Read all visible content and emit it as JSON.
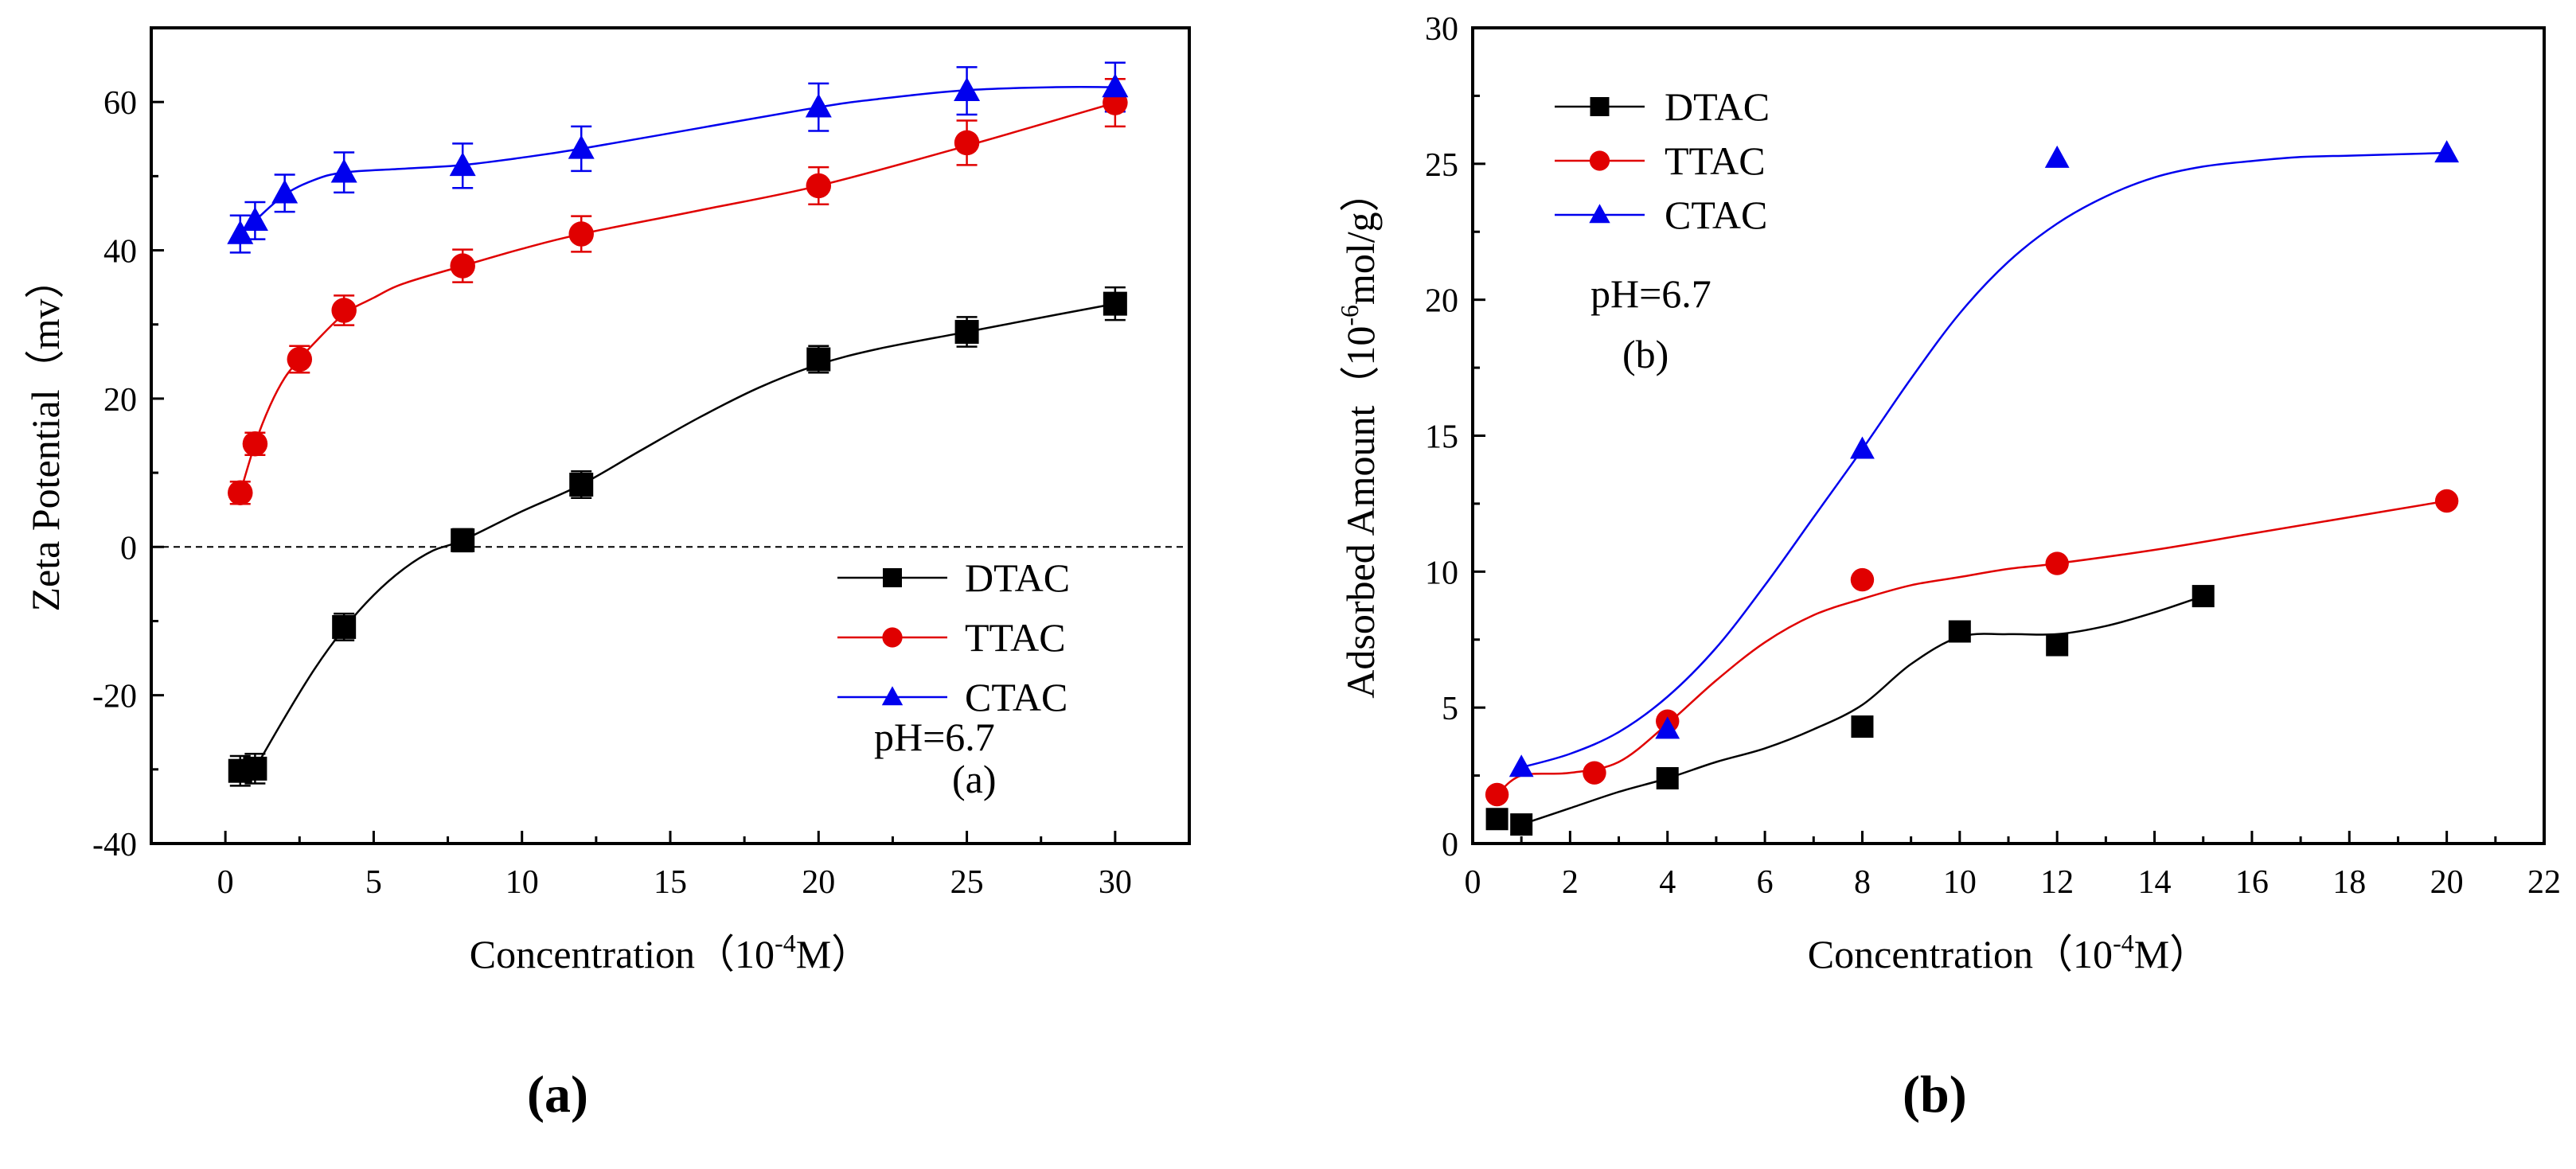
{
  "chart_data": [
    {
      "id": "a",
      "type": "line",
      "panel_label_prefix": "(",
      "panel_label": "a",
      "panel_label_suffix": ")",
      "xlabel": "Concentration（10",
      "xlabel_sup": "-4",
      "xlabel_tail": "M）",
      "ylabel": "Zeta Potential（mv）",
      "xlim": [
        -2.5,
        32.5
      ],
      "ylim": [
        -40,
        70
      ],
      "xticks": [
        0,
        5,
        10,
        15,
        20,
        25,
        30
      ],
      "yticks": [
        -40,
        -20,
        0,
        20,
        40,
        60
      ],
      "zero_line": true,
      "annotations": [
        "pH=6.7",
        "(a)"
      ],
      "legend": [
        "DTAC",
        "TTAC",
        "CTAC"
      ],
      "series": [
        {
          "name": "DTAC",
          "color": "#000000",
          "marker": "square",
          "x": [
            0.5,
            1,
            4,
            8,
            12,
            20,
            25,
            30
          ],
          "y": [
            -30.2,
            -29.9,
            -10.8,
            0.9,
            8.4,
            25.3,
            29.0,
            32.8
          ],
          "err": [
            2,
            2,
            1.8,
            1.5,
            1.8,
            1.8,
            2,
            2.2
          ],
          "curve_x": [
            1,
            2,
            3,
            4,
            5,
            6,
            7,
            8,
            10,
            12,
            14,
            16,
            18,
            20,
            22,
            25,
            28,
            30
          ],
          "curve_y": [
            -29.9,
            -23,
            -16.5,
            -11,
            -6.5,
            -3,
            -0.5,
            0.9,
            4.8,
            8.4,
            13,
            17.5,
            21.5,
            24.6,
            26.7,
            29,
            31.3,
            32.8
          ]
        },
        {
          "name": "TTAC",
          "color": "#e00000",
          "marker": "circle",
          "x": [
            0.5,
            1,
            2.5,
            4,
            8,
            12,
            20,
            25,
            30
          ],
          "y": [
            7.3,
            13.9,
            25.3,
            31.9,
            37.9,
            42.2,
            48.7,
            54.5,
            59.9
          ],
          "err": [
            1.5,
            1.5,
            1.8,
            2,
            2.2,
            2.4,
            2.5,
            3,
            3.2
          ],
          "curve_x": [
            0.5,
            1,
            1.5,
            2,
            2.5,
            3,
            4,
            5,
            6,
            8,
            10,
            12,
            16,
            20,
            25,
            30
          ],
          "curve_y": [
            7.3,
            13.9,
            19,
            22.8,
            25.3,
            27.5,
            31.4,
            33.6,
            35.5,
            37.9,
            40.2,
            42.2,
            45.4,
            48.7,
            54.1,
            59.9
          ]
        },
        {
          "name": "CTAC",
          "color": "#0000ee",
          "marker": "triangle",
          "x": [
            0.5,
            1,
            2,
            4,
            8,
            12,
            20,
            25,
            30
          ],
          "y": [
            42.2,
            44.0,
            47.7,
            50.5,
            51.4,
            53.7,
            59.3,
            61.5,
            62.0
          ],
          "err": [
            2.5,
            2.5,
            2.5,
            2.7,
            3,
            3,
            3.2,
            3.2,
            3.3
          ],
          "curve_x": [
            0.5,
            1,
            2,
            3,
            4,
            6,
            8,
            10,
            12,
            16,
            20,
            22,
            25,
            28,
            30
          ],
          "curve_y": [
            42.2,
            44.0,
            47.5,
            49.5,
            50.5,
            51.0,
            51.5,
            52.5,
            53.7,
            56.5,
            59.3,
            60.4,
            61.6,
            62.0,
            62.0
          ]
        }
      ]
    },
    {
      "id": "b",
      "type": "scatter",
      "panel_label_prefix": "(",
      "panel_label": "b",
      "panel_label_suffix": ")",
      "xlabel": "Concentration（10",
      "xlabel_sup": "-4",
      "xlabel_tail": "M）",
      "ylabel": "Adsorbed Amount（10",
      "ylabel_sup": "-6",
      "ylabel_tail": "mol/g）",
      "xlim": [
        0,
        22
      ],
      "ylim": [
        0,
        30
      ],
      "xticks": [
        0,
        2,
        4,
        6,
        8,
        10,
        12,
        14,
        16,
        18,
        20,
        22
      ],
      "yticks": [
        0,
        5,
        10,
        15,
        20,
        25,
        30
      ],
      "annotations": [
        "pH=6.7",
        "(b)"
      ],
      "legend": [
        "DTAC",
        "TTAC",
        "CTAC"
      ],
      "series": [
        {
          "name": "DTAC",
          "color": "#000000",
          "marker": "square",
          "x": [
            0.5,
            1,
            4,
            8,
            10,
            12,
            15
          ],
          "y": [
            0.9,
            0.7,
            2.4,
            4.3,
            7.8,
            7.3,
            9.1
          ],
          "curve_x": [
            1,
            2,
            3,
            4,
            5,
            6,
            7,
            8,
            9,
            10,
            11,
            12,
            13,
            14,
            15
          ],
          "curve_y": [
            0.7,
            1.3,
            1.9,
            2.4,
            3.0,
            3.5,
            4.2,
            5.1,
            6.6,
            7.6,
            7.7,
            7.7,
            8.0,
            8.5,
            9.1
          ]
        },
        {
          "name": "TTAC",
          "color": "#e00000",
          "marker": "circle",
          "x": [
            0.5,
            2.5,
            4,
            8,
            12,
            20
          ],
          "y": [
            1.8,
            2.6,
            4.5,
            9.7,
            10.3,
            12.6
          ],
          "curve_x": [
            0.5,
            1,
            2,
            3,
            4,
            5,
            6,
            7,
            8,
            9,
            10,
            11,
            12,
            14,
            16,
            18,
            20
          ],
          "curve_y": [
            1.8,
            2.5,
            2.6,
            3.0,
            4.4,
            6.0,
            7.4,
            8.4,
            9.0,
            9.5,
            9.8,
            10.1,
            10.3,
            10.8,
            11.4,
            12.0,
            12.6
          ]
        },
        {
          "name": "CTAC",
          "color": "#0000ee",
          "marker": "triangle",
          "x": [
            1,
            4,
            8,
            12,
            20
          ],
          "y": [
            2.8,
            4.2,
            14.5,
            25.2,
            25.4
          ],
          "curve_x": [
            1,
            2,
            3,
            4,
            5,
            6,
            7,
            8,
            9,
            10,
            11,
            12,
            13,
            14,
            15,
            16,
            17,
            18,
            19,
            20
          ],
          "curve_y": [
            2.8,
            3.3,
            4.1,
            5.4,
            7.2,
            9.5,
            12.0,
            14.5,
            17.1,
            19.5,
            21.4,
            22.8,
            23.8,
            24.5,
            24.9,
            25.1,
            25.25,
            25.3,
            25.35,
            25.4
          ]
        }
      ]
    }
  ]
}
